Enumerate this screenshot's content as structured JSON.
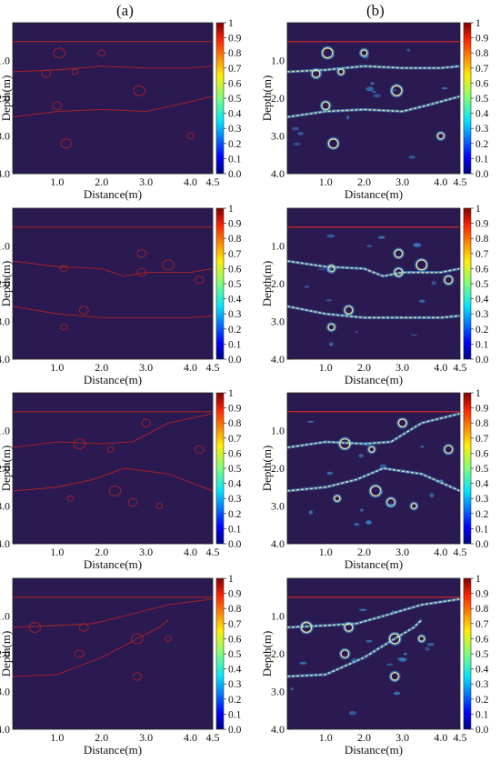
{
  "labels": {
    "left": "(a)",
    "right": "(b)"
  },
  "chart_data": [
    {
      "type": "heatmap",
      "panel": "a1",
      "xlabel": "Distance(m)",
      "ylabel": "Depth(m)",
      "xlim": [
        0,
        4.5
      ],
      "ylim": [
        4.0,
        0.0
      ],
      "xticks": [
        "1.0",
        "2.0",
        "3.0",
        "4.0",
        "4.5"
      ],
      "yticks": [
        "1.0",
        "2.0",
        "3.0",
        "4.0"
      ],
      "colorbar": {
        "range": [
          0.0,
          1.0
        ],
        "ticks": [
          "1",
          "0.9",
          "0.8",
          "0.7",
          "0.6",
          "0.5",
          "0.4",
          "0.3",
          "0.2",
          "0.1",
          "0.0"
        ]
      },
      "interfaces": [
        [
          [
            0,
            0.5
          ],
          [
            4.5,
            0.5
          ]
        ],
        [
          [
            0,
            1.3
          ],
          [
            1.0,
            1.25
          ],
          [
            2.0,
            1.15
          ],
          [
            3.0,
            1.2
          ],
          [
            4.0,
            1.2
          ],
          [
            4.5,
            1.15
          ]
        ],
        [
          [
            0,
            2.5
          ],
          [
            1.0,
            2.35
          ],
          [
            2.0,
            2.3
          ],
          [
            3.0,
            2.35
          ],
          [
            3.6,
            2.2
          ],
          [
            4.5,
            1.95
          ]
        ]
      ],
      "voids": [
        [
          1.05,
          0.8,
          0.13
        ],
        [
          2.0,
          0.8,
          0.08
        ],
        [
          0.75,
          1.35,
          0.1
        ],
        [
          1.4,
          1.3,
          0.07
        ],
        [
          2.85,
          1.8,
          0.13
        ],
        [
          1.0,
          2.2,
          0.1
        ],
        [
          1.2,
          3.2,
          0.12
        ],
        [
          4.0,
          3.0,
          0.08
        ]
      ]
    },
    {
      "type": "heatmap",
      "panel": "b1",
      "xlabel": "Distance(m)",
      "ylabel": "Depth(m)",
      "xlim": [
        0,
        4.5
      ],
      "ylim": [
        4.0,
        0.0
      ],
      "xticks": [
        "1.0",
        "2.0",
        "3.0",
        "4.0",
        "4.5"
      ],
      "yticks": [
        "1.0",
        "2.0",
        "3.0",
        "4.0"
      ],
      "colorbar": {
        "range": [
          0.0,
          1.0
        ],
        "ticks": [
          "1",
          "0.9",
          "0.8",
          "0.7",
          "0.6",
          "0.5",
          "0.4",
          "0.3",
          "0.2",
          "0.1",
          "0.0"
        ]
      },
      "interfaces": [
        [
          [
            0,
            0.5
          ],
          [
            4.5,
            0.5
          ]
        ],
        [
          [
            0,
            1.3
          ],
          [
            1.0,
            1.25
          ],
          [
            2.0,
            1.15
          ],
          [
            3.0,
            1.2
          ],
          [
            4.0,
            1.2
          ],
          [
            4.5,
            1.15
          ]
        ],
        [
          [
            0,
            2.5
          ],
          [
            1.0,
            2.35
          ],
          [
            2.0,
            2.3
          ],
          [
            3.0,
            2.35
          ],
          [
            3.6,
            2.2
          ],
          [
            4.5,
            1.95
          ]
        ]
      ],
      "voids": [
        [
          1.05,
          0.8,
          0.13
        ],
        [
          2.0,
          0.8,
          0.08
        ],
        [
          0.75,
          1.35,
          0.1
        ],
        [
          1.4,
          1.3,
          0.07
        ],
        [
          2.85,
          1.8,
          0.13
        ],
        [
          1.0,
          2.2,
          0.1
        ],
        [
          1.2,
          3.2,
          0.12
        ],
        [
          4.0,
          3.0,
          0.08
        ]
      ]
    },
    {
      "type": "heatmap",
      "panel": "a2",
      "xlabel": "Distance(m)",
      "ylabel": "Depth(m)",
      "xlim": [
        0,
        4.5
      ],
      "ylim": [
        4.0,
        0.0
      ],
      "xticks": [
        "1.0",
        "2.0",
        "3.0",
        "4.0",
        "4.5"
      ],
      "yticks": [
        "1.0",
        "2.0",
        "3.0",
        "4.0"
      ],
      "colorbar": {
        "range": [
          0.0,
          1.0
        ],
        "ticks": [
          "1",
          "0.9",
          "0.8",
          "0.7",
          "0.6",
          "0.5",
          "0.4",
          "0.3",
          "0.2",
          "0.1",
          "0.0"
        ]
      },
      "interfaces": [
        [
          [
            0,
            0.5
          ],
          [
            4.5,
            0.5
          ]
        ],
        [
          [
            0,
            1.4
          ],
          [
            1.0,
            1.55
          ],
          [
            2.0,
            1.6
          ],
          [
            2.5,
            1.8
          ],
          [
            3.0,
            1.7
          ],
          [
            4.0,
            1.7
          ],
          [
            4.5,
            1.6
          ]
        ],
        [
          [
            0,
            2.6
          ],
          [
            1.0,
            2.8
          ],
          [
            2.0,
            2.9
          ],
          [
            3.0,
            2.9
          ],
          [
            4.0,
            2.9
          ],
          [
            4.5,
            2.85
          ]
        ]
      ],
      "voids": [
        [
          2.9,
          1.2,
          0.1
        ],
        [
          3.5,
          1.5,
          0.13
        ],
        [
          1.15,
          1.6,
          0.08
        ],
        [
          2.9,
          1.7,
          0.1
        ],
        [
          4.2,
          1.9,
          0.1
        ],
        [
          1.6,
          2.7,
          0.1
        ],
        [
          1.15,
          3.15,
          0.08
        ]
      ]
    },
    {
      "type": "heatmap",
      "panel": "b2",
      "xlabel": "Distance(m)",
      "ylabel": "Depth(m)",
      "xlim": [
        0,
        4.5
      ],
      "ylim": [
        4.0,
        0.0
      ],
      "xticks": [
        "1.0",
        "2.0",
        "3.0",
        "4.0",
        "4.5"
      ],
      "yticks": [
        "1.0",
        "2.0",
        "3.0",
        "4.0"
      ],
      "colorbar": {
        "range": [
          0.0,
          1.0
        ],
        "ticks": [
          "1",
          "0.9",
          "0.8",
          "0.7",
          "0.6",
          "0.5",
          "0.4",
          "0.3",
          "0.2",
          "0.1",
          "0.0"
        ]
      },
      "interfaces": [
        [
          [
            0,
            0.5
          ],
          [
            4.5,
            0.5
          ]
        ],
        [
          [
            0,
            1.4
          ],
          [
            1.0,
            1.55
          ],
          [
            2.0,
            1.6
          ],
          [
            2.5,
            1.8
          ],
          [
            3.0,
            1.7
          ],
          [
            4.0,
            1.7
          ],
          [
            4.5,
            1.6
          ]
        ],
        [
          [
            0,
            2.6
          ],
          [
            1.0,
            2.8
          ],
          [
            2.0,
            2.9
          ],
          [
            3.0,
            2.9
          ],
          [
            4.0,
            2.9
          ],
          [
            4.5,
            2.85
          ]
        ]
      ],
      "voids": [
        [
          2.9,
          1.2,
          0.1
        ],
        [
          3.5,
          1.5,
          0.13
        ],
        [
          1.15,
          1.6,
          0.08
        ],
        [
          2.9,
          1.7,
          0.1
        ],
        [
          4.2,
          1.9,
          0.1
        ],
        [
          1.6,
          2.7,
          0.1
        ],
        [
          1.15,
          3.15,
          0.08
        ]
      ]
    },
    {
      "type": "heatmap",
      "panel": "a3",
      "xlabel": "Distance(m)",
      "ylabel": "Depth(m)",
      "xlim": [
        0,
        4.5
      ],
      "ylim": [
        4.0,
        0.0
      ],
      "xticks": [
        "1.0",
        "2.0",
        "3.0",
        "4.0",
        "4.5"
      ],
      "yticks": [
        "1.0",
        "2.0",
        "3.0",
        "4.0"
      ],
      "colorbar": {
        "range": [
          0.0,
          1.0
        ],
        "ticks": [
          "1",
          "0.9",
          "0.8",
          "0.7",
          "0.6",
          "0.5",
          "0.4",
          "0.3",
          "0.2",
          "0.1",
          "0.0"
        ]
      },
      "interfaces": [
        [
          [
            0,
            0.5
          ],
          [
            4.5,
            0.5
          ]
        ],
        [
          [
            0,
            1.45
          ],
          [
            1.0,
            1.3
          ],
          [
            2.0,
            1.35
          ],
          [
            2.7,
            1.3
          ],
          [
            3.5,
            0.8
          ],
          [
            4.5,
            0.55
          ]
        ],
        [
          [
            0,
            2.6
          ],
          [
            1.0,
            2.5
          ],
          [
            1.8,
            2.3
          ],
          [
            2.5,
            2.0
          ],
          [
            3.5,
            2.15
          ],
          [
            4.5,
            2.6
          ]
        ]
      ],
      "voids": [
        [
          3.0,
          0.8,
          0.1
        ],
        [
          1.5,
          1.35,
          0.13
        ],
        [
          2.2,
          1.5,
          0.07
        ],
        [
          4.2,
          1.5,
          0.1
        ],
        [
          2.3,
          2.6,
          0.13
        ],
        [
          1.3,
          2.8,
          0.07
        ],
        [
          2.7,
          2.9,
          0.1
        ],
        [
          3.3,
          3.0,
          0.07
        ]
      ]
    },
    {
      "type": "heatmap",
      "panel": "b3",
      "xlabel": "Distance(m)",
      "ylabel": "Depth(m)",
      "xlim": [
        0,
        4.5
      ],
      "ylim": [
        4.0,
        0.0
      ],
      "xticks": [
        "1.0",
        "2.0",
        "3.0",
        "4.0",
        "4.5"
      ],
      "yticks": [
        "1.0",
        "2.0",
        "3.0",
        "4.0"
      ],
      "colorbar": {
        "range": [
          0.0,
          1.0
        ],
        "ticks": [
          "1",
          "0.9",
          "0.8",
          "0.7",
          "0.6",
          "0.5",
          "0.4",
          "0.3",
          "0.2",
          "0.1",
          "0.0"
        ]
      },
      "interfaces": [
        [
          [
            0,
            0.5
          ],
          [
            4.5,
            0.5
          ]
        ],
        [
          [
            0,
            1.45
          ],
          [
            1.0,
            1.3
          ],
          [
            2.0,
            1.35
          ],
          [
            2.7,
            1.3
          ],
          [
            3.5,
            0.8
          ],
          [
            4.5,
            0.55
          ]
        ],
        [
          [
            0,
            2.6
          ],
          [
            1.0,
            2.5
          ],
          [
            1.8,
            2.3
          ],
          [
            2.5,
            2.0
          ],
          [
            3.5,
            2.15
          ],
          [
            4.5,
            2.6
          ]
        ]
      ],
      "voids": [
        [
          3.0,
          0.8,
          0.1
        ],
        [
          1.5,
          1.35,
          0.13
        ],
        [
          2.2,
          1.5,
          0.07
        ],
        [
          4.2,
          1.5,
          0.1
        ],
        [
          2.3,
          2.6,
          0.13
        ],
        [
          1.3,
          2.8,
          0.07
        ],
        [
          2.7,
          2.9,
          0.1
        ],
        [
          3.3,
          3.0,
          0.07
        ]
      ]
    },
    {
      "type": "heatmap",
      "panel": "a4",
      "xlabel": "Distance(m)",
      "ylabel": "Depth(m)",
      "xlim": [
        0,
        4.5
      ],
      "ylim": [
        4.0,
        0.0
      ],
      "xticks": [
        "1.0",
        "2.0",
        "3.0",
        "4.0",
        "4.5"
      ],
      "yticks": [
        "1.0",
        "2.0",
        "3.0",
        "4.0"
      ],
      "colorbar": {
        "range": [
          0.0,
          1.0
        ],
        "ticks": [
          "1",
          "0.9",
          "0.8",
          "0.7",
          "0.6",
          "0.5",
          "0.4",
          "0.3",
          "0.2",
          "0.1",
          "0.0"
        ]
      },
      "interfaces": [
        [
          [
            0,
            0.5
          ],
          [
            4.5,
            0.5
          ]
        ],
        [
          [
            0,
            1.3
          ],
          [
            1.0,
            1.25
          ],
          [
            1.8,
            1.2
          ],
          [
            2.5,
            1.0
          ],
          [
            3.5,
            0.7
          ],
          [
            4.5,
            0.55
          ]
        ],
        [
          [
            0,
            2.6
          ],
          [
            1.0,
            2.55
          ],
          [
            2.0,
            2.1
          ],
          [
            2.8,
            1.6
          ],
          [
            3.3,
            1.3
          ],
          [
            3.5,
            1.1
          ]
        ]
      ],
      "voids": [
        [
          0.5,
          1.3,
          0.13
        ],
        [
          1.6,
          1.3,
          0.1
        ],
        [
          2.8,
          1.6,
          0.13
        ],
        [
          3.5,
          1.6,
          0.07
        ],
        [
          1.5,
          2.0,
          0.1
        ],
        [
          2.8,
          2.6,
          0.1
        ]
      ]
    },
    {
      "type": "heatmap",
      "panel": "b4",
      "xlabel": "Distance(m)",
      "ylabel": "Depth(m)",
      "xlim": [
        0,
        4.5
      ],
      "ylim": [
        4.0,
        0.0
      ],
      "xticks": [
        "1.0",
        "2.0",
        "3.0",
        "4.0",
        "4.5"
      ],
      "yticks": [
        "1.0",
        "2.0",
        "3.0",
        "4.0"
      ],
      "colorbar": {
        "range": [
          0.0,
          1.0
        ],
        "ticks": [
          "1",
          "0.9",
          "0.8",
          "0.7",
          "0.6",
          "0.5",
          "0.4",
          "0.3",
          "0.2",
          "0.1",
          "0.0"
        ]
      },
      "interfaces": [
        [
          [
            0,
            0.5
          ],
          [
            4.5,
            0.5
          ]
        ],
        [
          [
            0,
            1.3
          ],
          [
            1.0,
            1.25
          ],
          [
            1.8,
            1.2
          ],
          [
            2.5,
            1.0
          ],
          [
            3.5,
            0.7
          ],
          [
            4.5,
            0.55
          ]
        ],
        [
          [
            0,
            2.6
          ],
          [
            1.0,
            2.55
          ],
          [
            2.0,
            2.1
          ],
          [
            2.8,
            1.6
          ],
          [
            3.3,
            1.3
          ],
          [
            3.5,
            1.1
          ]
        ]
      ],
      "voids": [
        [
          0.5,
          1.3,
          0.13
        ],
        [
          1.6,
          1.3,
          0.1
        ],
        [
          2.8,
          1.6,
          0.13
        ],
        [
          3.5,
          1.6,
          0.07
        ],
        [
          1.5,
          2.0,
          0.1
        ],
        [
          2.8,
          2.6,
          0.1
        ]
      ]
    }
  ],
  "colors": {
    "background": "#2b1a52",
    "true_model": "#b22222",
    "inverted_ring": "#e9e39a",
    "anomaly": "#3fa7f2"
  }
}
